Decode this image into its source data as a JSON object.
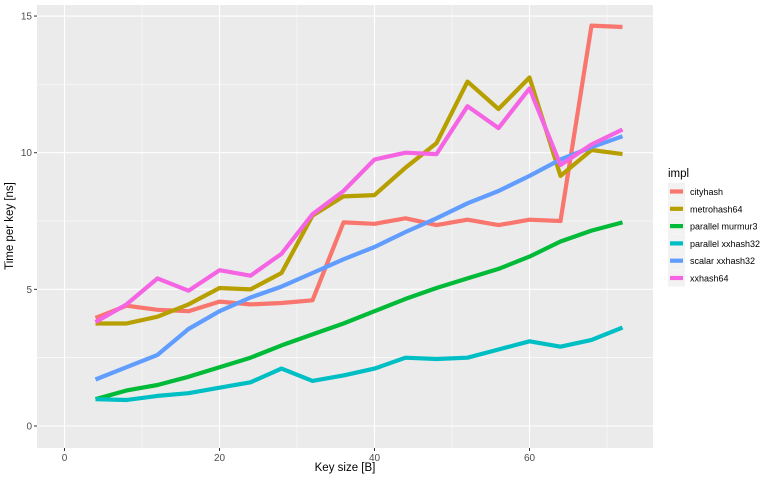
{
  "chart_data": {
    "type": "line",
    "title": "",
    "xlabel": "Key size [B]",
    "ylabel": "Time per key [ns]",
    "xlim": [
      -2,
      74
    ],
    "ylim": [
      -0.6,
      15.4
    ],
    "x_ticks": [
      0,
      20,
      40,
      60
    ],
    "y_ticks": [
      0,
      5,
      10,
      15
    ],
    "grid": true,
    "legend_title": "impl",
    "legend_position": "right",
    "x": [
      4,
      8,
      12,
      16,
      20,
      24,
      28,
      32,
      36,
      40,
      44,
      48,
      52,
      56,
      60,
      64,
      68,
      72
    ],
    "series": [
      {
        "name": "cityhash",
        "color": "#F8766D",
        "values": [
          3.95,
          4.4,
          4.25,
          4.2,
          4.55,
          4.45,
          4.5,
          4.6,
          7.45,
          7.4,
          7.6,
          7.35,
          7.55,
          7.35,
          7.55,
          7.5,
          14.65,
          14.6
        ]
      },
      {
        "name": "metrohash64",
        "color": "#B79F00",
        "values": [
          3.75,
          3.75,
          4.0,
          4.45,
          5.05,
          5.0,
          5.6,
          7.7,
          8.4,
          8.45,
          9.45,
          10.35,
          12.6,
          11.6,
          12.75,
          9.15,
          10.1,
          9.95
        ]
      },
      {
        "name": "parallel murmur3",
        "color": "#00BA38",
        "values": [
          0.98,
          1.3,
          1.5,
          1.8,
          2.15,
          2.5,
          2.95,
          3.35,
          3.75,
          4.2,
          4.65,
          5.05,
          5.4,
          5.75,
          6.2,
          6.75,
          7.15,
          7.45
        ]
      },
      {
        "name": "parallel xxhash32",
        "color": "#00BFC4",
        "values": [
          0.98,
          0.95,
          1.1,
          1.2,
          1.4,
          1.6,
          2.1,
          1.65,
          1.85,
          2.1,
          2.5,
          2.45,
          2.5,
          2.8,
          3.1,
          2.9,
          3.15,
          3.6
        ]
      },
      {
        "name": "scalar xxhash32",
        "color": "#619CFF",
        "values": [
          1.7,
          2.15,
          2.6,
          3.55,
          4.2,
          4.7,
          5.1,
          5.6,
          6.1,
          6.55,
          7.1,
          7.6,
          8.15,
          8.6,
          9.15,
          9.75,
          10.2,
          10.6
        ]
      },
      {
        "name": "xxhash64",
        "color": "#F564E3",
        "values": [
          3.8,
          4.45,
          5.4,
          4.95,
          5.7,
          5.5,
          6.3,
          7.75,
          8.6,
          9.75,
          10.0,
          9.95,
          11.7,
          10.9,
          12.35,
          9.55,
          10.3,
          10.85
        ]
      }
    ]
  }
}
